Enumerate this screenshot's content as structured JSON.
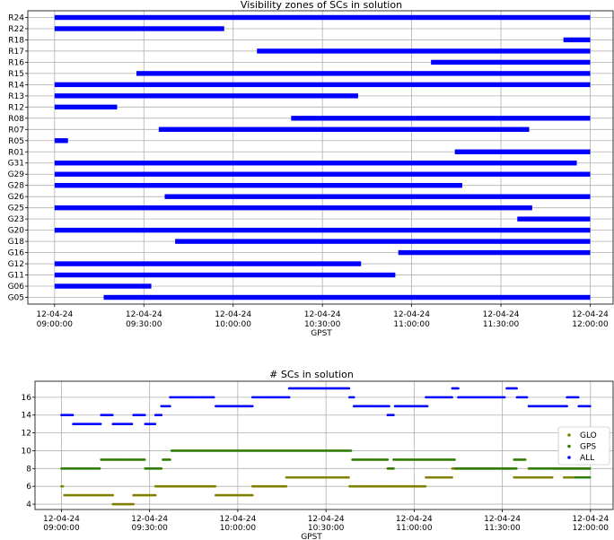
{
  "chart_data": [
    {
      "type": "timeline",
      "title": "Visibility zones of SCs in solution",
      "xlabel": "GPST",
      "ylabel": "",
      "color": "#0000ff",
      "xlim": [
        "08:51:00",
        "12:08:00"
      ],
      "x_ticks": [
        {
          "date": "12-04-24",
          "time": "09:00:00"
        },
        {
          "date": "12-04-24",
          "time": "09:30:00"
        },
        {
          "date": "12-04-24",
          "time": "10:00:00"
        },
        {
          "date": "12-04-24",
          "time": "10:30:00"
        },
        {
          "date": "12-04-24",
          "time": "11:00:00"
        },
        {
          "date": "12-04-24",
          "time": "11:30:00"
        },
        {
          "date": "12-04-24",
          "time": "12:00:00"
        }
      ],
      "categories": [
        "G05",
        "G06",
        "G11",
        "G12",
        "G16",
        "G18",
        "G20",
        "G23",
        "G25",
        "G26",
        "G28",
        "G29",
        "G31",
        "R01",
        "R05",
        "R07",
        "R08",
        "R12",
        "R13",
        "R14",
        "R15",
        "R16",
        "R17",
        "R18",
        "R22",
        "R24"
      ],
      "intervals": [
        {
          "name": "G05",
          "start": "09:16:30",
          "end": "12:00:00"
        },
        {
          "name": "G06",
          "start": "09:00:00",
          "end": "09:32:30"
        },
        {
          "name": "G11",
          "start": "09:00:00",
          "end": "10:54:30"
        },
        {
          "name": "G12",
          "start": "09:00:00",
          "end": "10:43:00"
        },
        {
          "name": "G16",
          "start": "10:55:30",
          "end": "12:00:00"
        },
        {
          "name": "G18",
          "start": "09:40:30",
          "end": "12:00:00"
        },
        {
          "name": "G20",
          "start": "09:00:00",
          "end": "12:00:00"
        },
        {
          "name": "G23",
          "start": "11:35:30",
          "end": "12:00:00"
        },
        {
          "name": "G25",
          "start": "09:00:00",
          "end": "11:40:30"
        },
        {
          "name": "G26",
          "start": "09:37:00",
          "end": "12:00:00"
        },
        {
          "name": "G28",
          "start": "09:00:00",
          "end": "11:17:00"
        },
        {
          "name": "G29",
          "start": "09:00:00",
          "end": "12:00:00"
        },
        {
          "name": "G31",
          "start": "09:00:00",
          "end": "11:55:30"
        },
        {
          "name": "R01",
          "start": "11:14:30",
          "end": "12:00:00"
        },
        {
          "name": "R05",
          "start": "09:00:00",
          "end": "09:04:30"
        },
        {
          "name": "R07",
          "start": "09:35:00",
          "end": "11:39:30"
        },
        {
          "name": "R08",
          "start": "10:19:30",
          "end": "12:00:00"
        },
        {
          "name": "R12",
          "start": "09:00:00",
          "end": "09:21:00"
        },
        {
          "name": "R13",
          "start": "09:00:00",
          "end": "10:42:00"
        },
        {
          "name": "R14",
          "start": "09:00:00",
          "end": "12:00:00"
        },
        {
          "name": "R15",
          "start": "09:27:30",
          "end": "12:00:00"
        },
        {
          "name": "R16",
          "start": "11:06:30",
          "end": "12:00:00"
        },
        {
          "name": "R17",
          "start": "10:08:00",
          "end": "12:00:00"
        },
        {
          "name": "R18",
          "start": "11:51:00",
          "end": "12:00:00"
        },
        {
          "name": "R22",
          "start": "09:00:00",
          "end": "09:57:00"
        },
        {
          "name": "R24",
          "start": "09:00:00",
          "end": "12:00:00"
        }
      ],
      "grid": true
    },
    {
      "type": "scatter",
      "title": "# SCs in solution",
      "xlabel": "GPST",
      "ylabel": "",
      "xlim": [
        "08:51:00",
        "12:08:00"
      ],
      "ylim": [
        3.4,
        17.8
      ],
      "y_ticks": [
        4,
        6,
        8,
        10,
        12,
        14,
        16
      ],
      "x_ticks": [
        {
          "date": "12-04-24",
          "time": "09:00:00"
        },
        {
          "date": "12-04-24",
          "time": "09:30:00"
        },
        {
          "date": "12-04-24",
          "time": "10:00:00"
        },
        {
          "date": "12-04-24",
          "time": "10:30:00"
        },
        {
          "date": "12-04-24",
          "time": "11:00:00"
        },
        {
          "date": "12-04-24",
          "time": "11:30:00"
        },
        {
          "date": "12-04-24",
          "time": "12:00:00"
        }
      ],
      "legend_position": "right",
      "grid": true,
      "series": [
        {
          "name": "GLO",
          "color": "#808000",
          "segments": [
            {
              "start": "09:00:00",
              "end": "09:00:30",
              "value": 6
            },
            {
              "start": "09:01:00",
              "end": "09:17:30",
              "value": 5
            },
            {
              "start": "09:17:30",
              "end": "09:24:30",
              "value": 4
            },
            {
              "start": "09:24:30",
              "end": "09:32:00",
              "value": 5
            },
            {
              "start": "09:32:00",
              "end": "09:52:30",
              "value": 6
            },
            {
              "start": "09:52:30",
              "end": "10:05:00",
              "value": 5
            },
            {
              "start": "10:05:00",
              "end": "10:16:30",
              "value": 6
            },
            {
              "start": "10:16:30",
              "end": "10:38:00",
              "value": 7
            },
            {
              "start": "10:38:00",
              "end": "11:04:00",
              "value": 6
            },
            {
              "start": "11:04:00",
              "end": "11:13:00",
              "value": 7
            },
            {
              "start": "11:13:00",
              "end": "11:34:00",
              "value": 8
            },
            {
              "start": "11:34:00",
              "end": "11:47:00",
              "value": 7
            },
            {
              "start": "11:47:00",
              "end": "11:59:30",
              "value": 8
            },
            {
              "start": "11:51:00",
              "end": "11:59:30",
              "value": 7
            }
          ]
        },
        {
          "name": "GPS",
          "color": "#2e7d00",
          "segments": [
            {
              "start": "09:00:00",
              "end": "09:13:00",
              "value": 8
            },
            {
              "start": "09:13:30",
              "end": "09:28:30",
              "value": 9
            },
            {
              "start": "09:28:30",
              "end": "09:34:00",
              "value": 8
            },
            {
              "start": "09:34:30",
              "end": "09:37:00",
              "value": 9
            },
            {
              "start": "09:37:30",
              "end": "10:38:30",
              "value": 10
            },
            {
              "start": "10:39:00",
              "end": "10:51:00",
              "value": 9
            },
            {
              "start": "10:51:00",
              "end": "10:53:00",
              "value": 8
            },
            {
              "start": "10:53:00",
              "end": "11:14:00",
              "value": 9
            },
            {
              "start": "11:14:00",
              "end": "11:35:00",
              "value": 8
            },
            {
              "start": "11:34:00",
              "end": "11:38:00",
              "value": 9
            },
            {
              "start": "11:39:00",
              "end": "12:00:00",
              "value": 8
            },
            {
              "start": "11:55:00",
              "end": "12:00:00",
              "value": 7
            }
          ]
        },
        {
          "name": "ALL",
          "color": "#0000ff",
          "segments": [
            {
              "start": "09:00:00",
              "end": "09:04:00",
              "value": 14
            },
            {
              "start": "09:04:00",
              "end": "09:13:30",
              "value": 13
            },
            {
              "start": "09:13:30",
              "end": "09:17:30",
              "value": 14
            },
            {
              "start": "09:17:30",
              "end": "09:24:00",
              "value": 13
            },
            {
              "start": "09:24:30",
              "end": "09:28:30",
              "value": 14
            },
            {
              "start": "09:28:30",
              "end": "09:32:00",
              "value": 13
            },
            {
              "start": "09:32:00",
              "end": "09:34:00",
              "value": 14
            },
            {
              "start": "09:34:00",
              "end": "09:37:00",
              "value": 15
            },
            {
              "start": "09:37:00",
              "end": "09:52:00",
              "value": 16
            },
            {
              "start": "09:52:30",
              "end": "10:05:00",
              "value": 15
            },
            {
              "start": "10:05:00",
              "end": "10:17:30",
              "value": 16
            },
            {
              "start": "10:17:30",
              "end": "10:38:00",
              "value": 17
            },
            {
              "start": "10:38:00",
              "end": "10:39:30",
              "value": 16
            },
            {
              "start": "10:39:30",
              "end": "10:51:30",
              "value": 15
            },
            {
              "start": "10:51:00",
              "end": "10:53:00",
              "value": 14
            },
            {
              "start": "10:53:30",
              "end": "11:04:30",
              "value": 15
            },
            {
              "start": "11:04:00",
              "end": "11:13:00",
              "value": 16
            },
            {
              "start": "11:13:00",
              "end": "11:15:00",
              "value": 17
            },
            {
              "start": "11:15:00",
              "end": "11:31:00",
              "value": 16
            },
            {
              "start": "11:31:30",
              "end": "11:35:00",
              "value": 17
            },
            {
              "start": "11:35:00",
              "end": "11:38:30",
              "value": 16
            },
            {
              "start": "11:39:00",
              "end": "11:52:00",
              "value": 15
            },
            {
              "start": "11:52:00",
              "end": "11:56:00",
              "value": 16
            },
            {
              "start": "11:56:00",
              "end": "12:00:00",
              "value": 15
            }
          ]
        }
      ]
    }
  ]
}
